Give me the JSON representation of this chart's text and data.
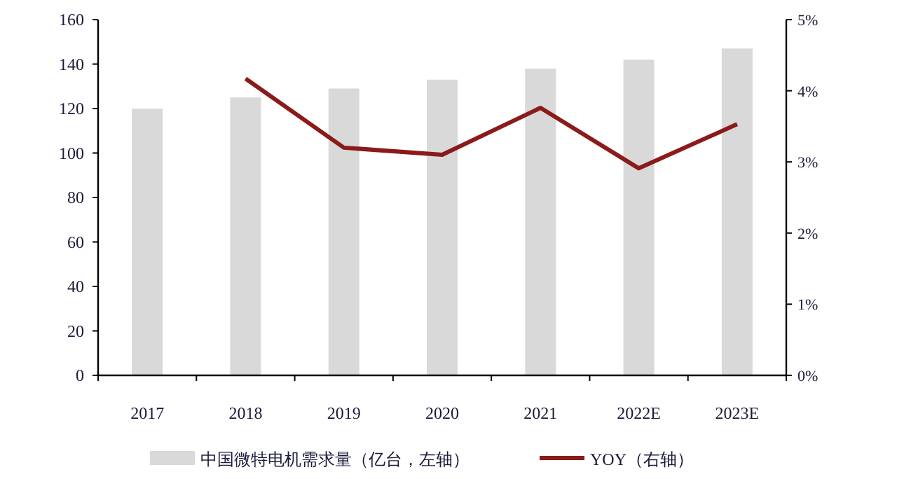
{
  "chart_data": {
    "type": "bar",
    "categories": [
      "2017",
      "2018",
      "2019",
      "2020",
      "2021",
      "2022E",
      "2023E"
    ],
    "series": [
      {
        "name": "中国微特电机需求量（亿台，左轴）",
        "color": "#d9d9d9",
        "values": [
          120,
          125,
          129,
          133,
          138,
          142,
          147
        ]
      },
      {
        "name": "YOY（右轴）",
        "type": "line",
        "axis": "y2",
        "color": "#8b1a1a",
        "values": [
          null,
          4.17,
          3.2,
          3.1,
          3.76,
          2.91,
          3.53
        ]
      }
    ],
    "ylim": [
      0,
      160
    ],
    "yticks": [
      0,
      20,
      40,
      60,
      80,
      100,
      120,
      140,
      160
    ],
    "y2lim": [
      0,
      5
    ],
    "y2ticks": [
      {
        "value": 0,
        "label": "0%"
      },
      {
        "value": 1,
        "label": "1%"
      },
      {
        "value": 2,
        "label": "2%"
      },
      {
        "value": 3,
        "label": "3%"
      },
      {
        "value": 4,
        "label": "4%"
      },
      {
        "value": 5,
        "label": "5%"
      }
    ],
    "legend": "bottom",
    "grid": false
  }
}
